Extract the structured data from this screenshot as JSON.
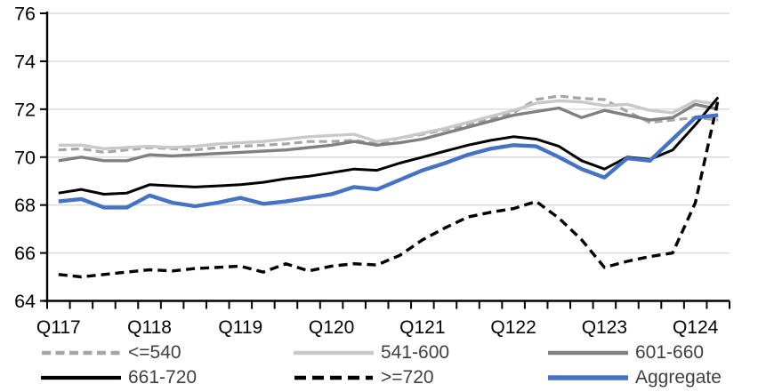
{
  "chart_data": {
    "type": "line",
    "title": "",
    "x_axis": {
      "tick_labels": [
        "Q117",
        "Q118",
        "Q119",
        "Q120",
        "Q121",
        "Q122",
        "Q123",
        "Q124"
      ],
      "points_per_label": 4,
      "n_points": 30,
      "minor_tick_frequency": "quarterly"
    },
    "y_axis": {
      "tick_labels": [
        76,
        74,
        72,
        70,
        68,
        66,
        64
      ],
      "ylim": [
        64,
        76
      ],
      "grid": true
    },
    "legend_position": "bottom",
    "series": [
      {
        "key": "le-540",
        "name": "<=540",
        "color": "#A6A6A6",
        "dashed": true,
        "line_width": 3.2,
        "dash_pattern": "9 5",
        "values": [
          70.3,
          70.35,
          70.2,
          70.3,
          70.4,
          70.35,
          70.3,
          70.4,
          70.45,
          70.5,
          70.55,
          70.65,
          70.65,
          70.7,
          70.55,
          70.8,
          70.95,
          71.15,
          71.35,
          71.6,
          71.85,
          72.4,
          72.55,
          72.45,
          72.4,
          71.9,
          71.45,
          71.55,
          71.65,
          71.55
        ]
      },
      {
        "key": "541-600",
        "name": "541-600",
        "color": "#C9C9C9",
        "dashed": false,
        "line_width": 3.4,
        "dash_pattern": "",
        "values": [
          70.5,
          70.5,
          70.35,
          70.4,
          70.45,
          70.4,
          70.45,
          70.55,
          70.6,
          70.65,
          70.75,
          70.85,
          70.9,
          70.95,
          70.65,
          70.8,
          71.0,
          71.2,
          71.45,
          71.7,
          71.95,
          72.25,
          72.35,
          72.3,
          72.15,
          72.2,
          71.95,
          71.85,
          72.35,
          72.2
        ]
      },
      {
        "key": "601-660",
        "name": "601-660",
        "color": "#808080",
        "dashed": false,
        "line_width": 3.4,
        "dash_pattern": "",
        "values": [
          69.85,
          70.0,
          69.85,
          69.85,
          70.1,
          70.05,
          70.1,
          70.15,
          70.2,
          70.25,
          70.3,
          70.4,
          70.5,
          70.65,
          70.5,
          70.6,
          70.75,
          71.0,
          71.25,
          71.5,
          71.75,
          71.9,
          72.05,
          71.65,
          71.95,
          71.75,
          71.55,
          71.65,
          72.2,
          72.0
        ]
      },
      {
        "key": "661-720",
        "name": "661-720",
        "color": "#000000",
        "dashed": false,
        "line_width": 3.0,
        "dash_pattern": "",
        "values": [
          68.5,
          68.65,
          68.45,
          68.5,
          68.85,
          68.8,
          68.75,
          68.8,
          68.85,
          68.95,
          69.1,
          69.2,
          69.35,
          69.5,
          69.45,
          69.75,
          70.0,
          70.25,
          70.5,
          70.7,
          70.85,
          70.75,
          70.45,
          69.85,
          69.5,
          70.0,
          69.9,
          70.3,
          71.35,
          72.5
        ]
      },
      {
        "key": "ge-720",
        "name": ">=720",
        "color": "#000000",
        "dashed": true,
        "line_width": 3.4,
        "dash_pattern": "10 6",
        "values": [
          65.1,
          65.0,
          65.1,
          65.2,
          65.3,
          65.25,
          65.35,
          65.4,
          65.45,
          65.2,
          65.55,
          65.25,
          65.45,
          65.55,
          65.5,
          65.9,
          66.55,
          67.05,
          67.5,
          67.7,
          67.85,
          68.15,
          67.45,
          66.55,
          65.4,
          65.65,
          65.85,
          66.0,
          68.1,
          72.4
        ]
      },
      {
        "key": "aggregate",
        "name": "Aggregate",
        "color": "#4472C4",
        "dashed": false,
        "line_width": 4.4,
        "dash_pattern": "",
        "values": [
          68.15,
          68.25,
          67.9,
          67.9,
          68.4,
          68.1,
          67.95,
          68.1,
          68.3,
          68.05,
          68.15,
          68.3,
          68.45,
          68.75,
          68.65,
          69.05,
          69.45,
          69.75,
          70.1,
          70.35,
          70.5,
          70.45,
          70.0,
          69.5,
          69.15,
          69.95,
          69.85,
          70.75,
          71.65,
          71.75
        ]
      }
    ],
    "colors": {
      "grid": "#D9D9D9",
      "axis": "#000000",
      "axis_label": "#000000",
      "legend_text": "#404040",
      "background": "#FFFFFF"
    }
  }
}
